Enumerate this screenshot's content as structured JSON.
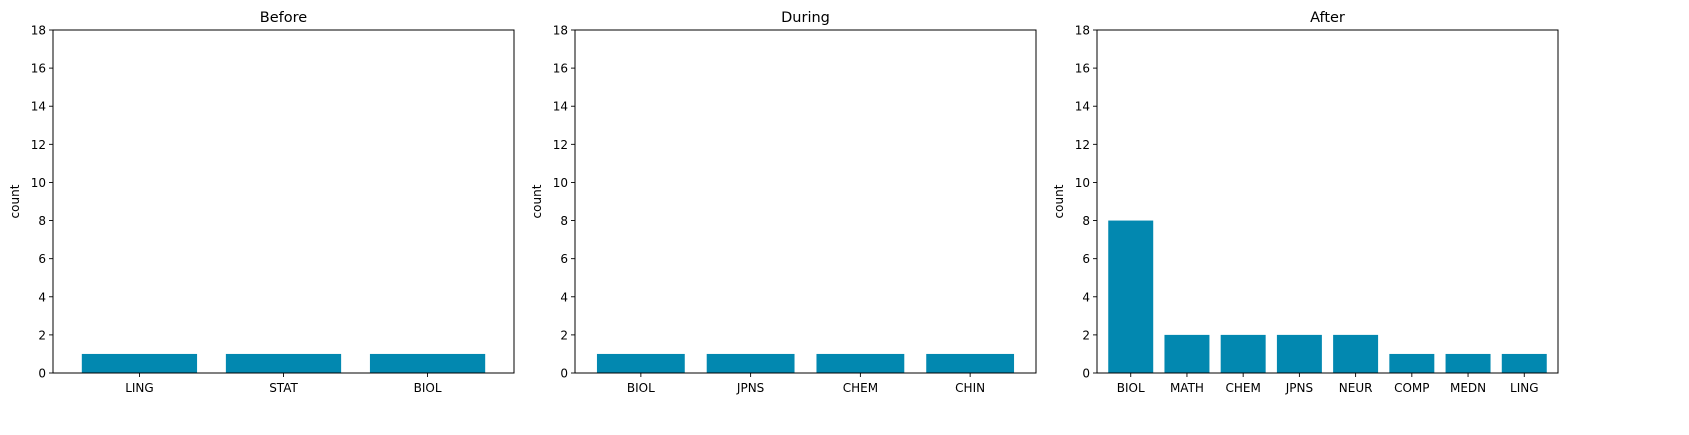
{
  "chart_data": [
    {
      "type": "bar",
      "title": "Before",
      "ylabel": "count",
      "categories": [
        "LING",
        "STAT",
        "BIOL"
      ],
      "values": [
        1,
        1,
        1
      ],
      "ylim": [
        0,
        18
      ],
      "yticks": [
        0,
        2,
        4,
        6,
        8,
        10,
        12,
        14,
        16,
        18
      ],
      "grid": false,
      "color": "#0288b0"
    },
    {
      "type": "bar",
      "title": "During",
      "ylabel": "count",
      "categories": [
        "BIOL",
        "JPNS",
        "CHEM",
        "CHIN"
      ],
      "values": [
        1,
        1,
        1,
        1
      ],
      "ylim": [
        0,
        18
      ],
      "yticks": [
        0,
        2,
        4,
        6,
        8,
        10,
        12,
        14,
        16,
        18
      ],
      "grid": false,
      "color": "#0288b0"
    },
    {
      "type": "bar",
      "title": "After",
      "ylabel": "count",
      "categories": [
        "BIOL",
        "MATH",
        "CHEM",
        "JPNS",
        "NEUR",
        "COMP",
        "MEDN",
        "LING"
      ],
      "values": [
        8,
        2,
        2,
        2,
        2,
        1,
        1,
        1
      ],
      "ylim": [
        0,
        18
      ],
      "yticks": [
        0,
        2,
        4,
        6,
        8,
        10,
        12,
        14,
        16,
        18
      ],
      "grid": false,
      "color": "#0288b0"
    }
  ]
}
